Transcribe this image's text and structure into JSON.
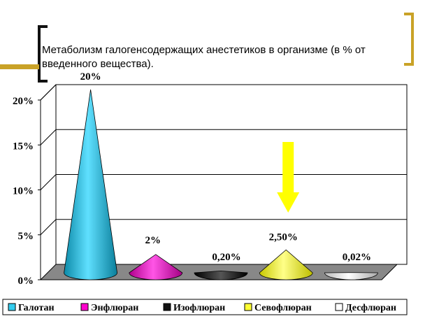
{
  "slide": {
    "title": "Метаболизм галогенсодержащих анестетиков в организме (в % от введенного вещества).",
    "accent_color": "#c9a227",
    "dark_bracket_color": "#111111"
  },
  "chart_data": {
    "type": "bar",
    "bar_shape": "cone",
    "categories": [
      "Галотан",
      "Энфлюран",
      "Изофлюран",
      "Севофлюран",
      "Десфлюран"
    ],
    "values": [
      20,
      2,
      0.2,
      2.5,
      0.02
    ],
    "data_labels": [
      "20%",
      "2%",
      "0,20%",
      "2,50%",
      "0,02%"
    ],
    "colors": [
      "#33ccee",
      "#ff00cc",
      "#111111",
      "#ffff33",
      "#ffffff"
    ],
    "ylim": [
      0,
      20
    ],
    "yticks": [
      "0%",
      "5%",
      "10%",
      "15%",
      "20%"
    ],
    "grid": true,
    "legend_position": "bottom",
    "annotation": {
      "type": "arrow-down",
      "color": "#ffff00",
      "target_category": "Севофлюран"
    }
  }
}
